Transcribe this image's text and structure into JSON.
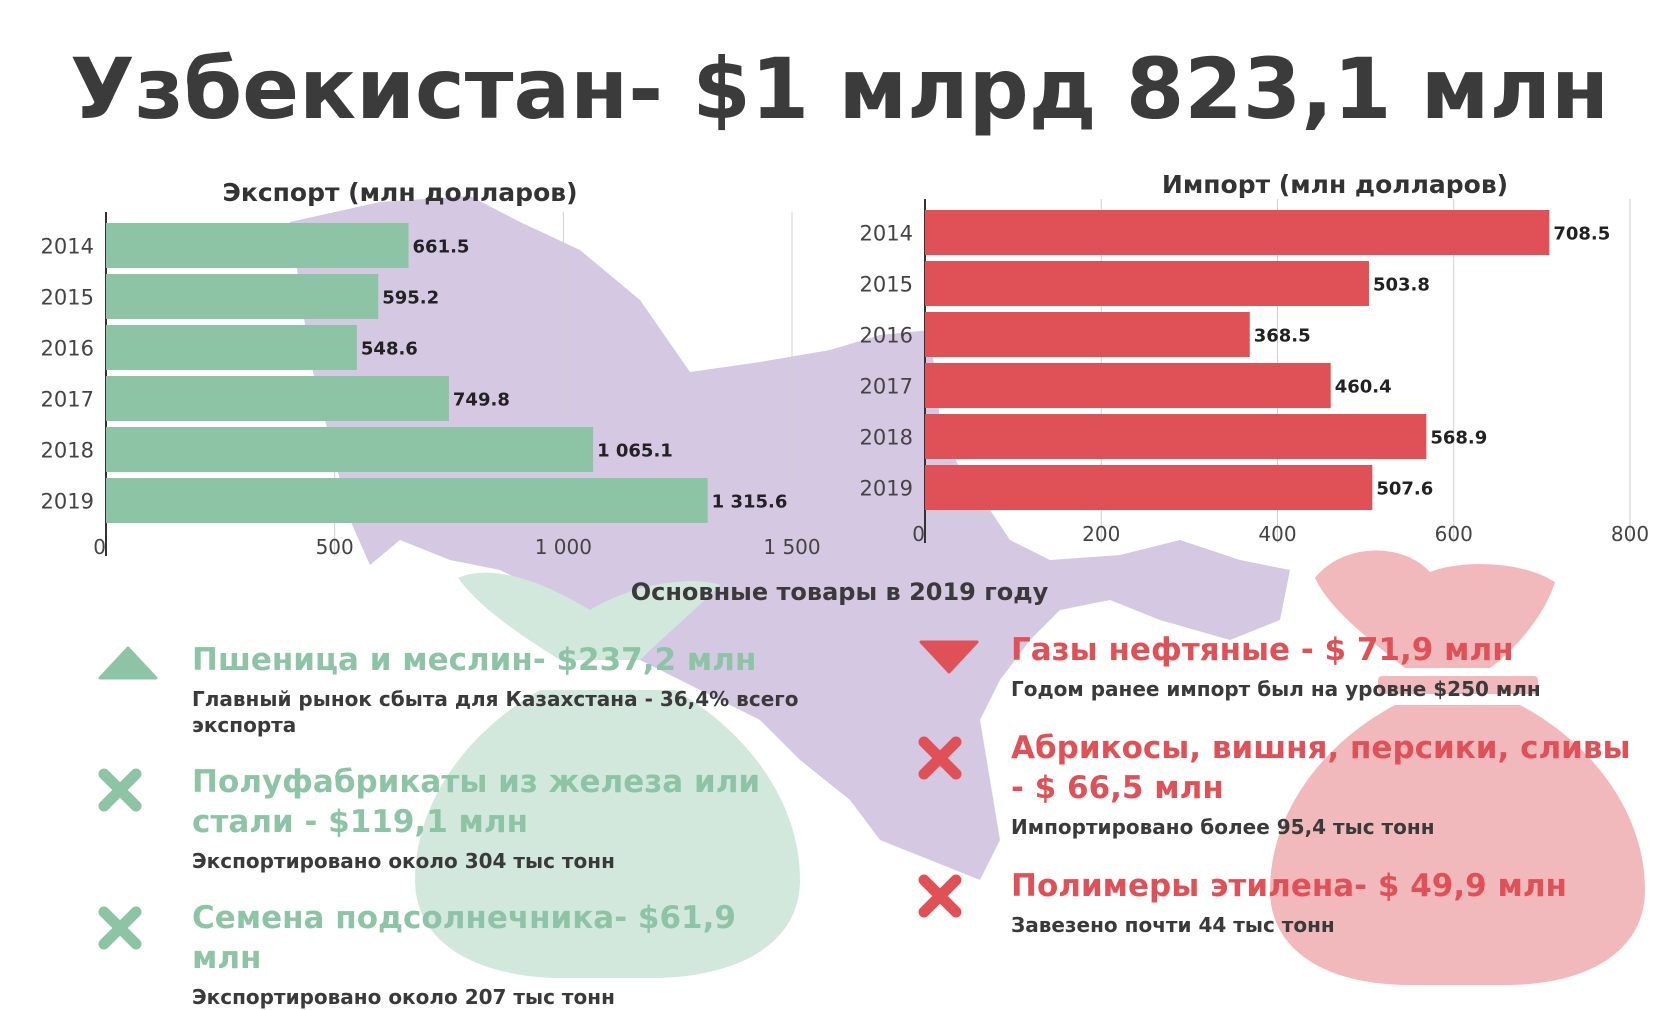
{
  "title": "Узбекистан- $1 млрд 823,1 млн",
  "colors": {
    "export": "#8cc4a5",
    "import": "#e05157",
    "map": "#d5c8e3",
    "bag_green": "#d3e8dc",
    "bag_red": "#f2b9bd"
  },
  "chart_data": [
    {
      "type": "bar",
      "orientation": "horizontal",
      "title": "Экспорт (млн долларов)",
      "categories": [
        "2014",
        "2015",
        "2016",
        "2017",
        "2018",
        "2019"
      ],
      "values": [
        661.5,
        595.2,
        548.6,
        749.8,
        1065.1,
        1315.6
      ],
      "value_labels": [
        "661.5",
        "595.2",
        "548.6",
        "749.8",
        "1 065.1",
        "1 315.6"
      ],
      "xlim": [
        0,
        1500
      ],
      "x_ticks": [
        "0",
        "500",
        "1 000",
        "1 500"
      ],
      "grid": true,
      "color": "#8cc4a5"
    },
    {
      "type": "bar",
      "orientation": "horizontal",
      "title": "Импорт (млн долларов)",
      "categories": [
        "2014",
        "2015",
        "2016",
        "2017",
        "2018",
        "2019"
      ],
      "values": [
        708.5,
        503.8,
        368.5,
        460.4,
        568.9,
        507.6
      ],
      "value_labels": [
        "708.5",
        "503.8",
        "368.5",
        "460.4",
        "568.9",
        "507.6"
      ],
      "xlim": [
        0,
        800
      ],
      "x_ticks": [
        "0",
        "200",
        "400",
        "600",
        "800"
      ],
      "grid": true,
      "color": "#e05157"
    }
  ],
  "goods": {
    "title": "Основные товары в 2019 году",
    "export": [
      {
        "icon": "up-triangle-icon",
        "head": "Пшеница и меслин- $237,2 млн",
        "desc": "Главный рынок сбыта для Казахстана - 36,4% всего экспорта"
      },
      {
        "icon": "x-icon",
        "head": "Полуфабрикаты из железа или стали - $119,1 млн",
        "desc": "Экспортировано около 304 тыс тонн"
      },
      {
        "icon": "x-icon",
        "head": "Семена подсолнечника- $61,9 млн",
        "desc": "Экспортировано около 207 тыс тонн"
      }
    ],
    "import": [
      {
        "icon": "down-triangle-icon",
        "head": "Газы нефтяные - $ 71,9 млн",
        "desc": "Годом ранее импорт был на уровне $250 млн"
      },
      {
        "icon": "x-icon",
        "head": "Абрикосы, вишня, персики, сливы  - $ 66,5 млн",
        "desc": "Импортировано более 95,4 тыс тонн"
      },
      {
        "icon": "x-icon",
        "head": "Полимеры этилена- $ 49,9 млн",
        "desc": "Завезено почти 44 тыс тонн"
      }
    ]
  }
}
